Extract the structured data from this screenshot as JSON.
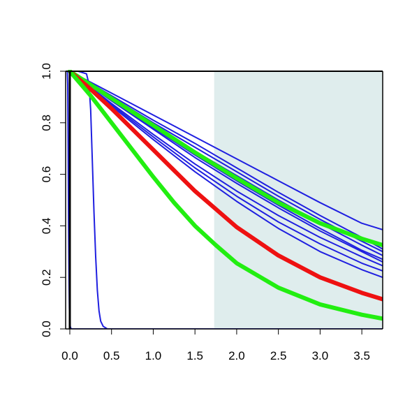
{
  "chart_data": {
    "type": "line",
    "title": "",
    "xlabel": "",
    "ylabel": "",
    "xlim": [
      -0.05,
      3.75
    ],
    "ylim": [
      0.0,
      1.0
    ],
    "x_ticks": [
      0.0,
      0.5,
      1.0,
      1.5,
      2.0,
      2.5,
      3.0,
      3.5
    ],
    "x_tick_labels": [
      "0.0",
      "0.5",
      "1.0",
      "1.5",
      "2.0",
      "2.5",
      "3.0",
      "3.5"
    ],
    "y_ticks": [
      0.0,
      0.2,
      0.4,
      0.6,
      0.8,
      1.0
    ],
    "y_tick_labels": [
      "0.0",
      "0.2",
      "0.4",
      "0.6",
      "0.8",
      "1.0"
    ],
    "grid": false,
    "legend": "none",
    "shaded_region": {
      "x_start": 1.73,
      "x_end": 3.75,
      "color": "#dfeded"
    },
    "series": [
      {
        "color": "#1f1fe0",
        "width": "thin",
        "x": [
          -0.03,
          -0.025,
          -0.02,
          -0.015,
          -0.01,
          -0.005,
          0.0,
          0.005,
          0.01,
          0.02,
          0.05,
          3.75
        ],
        "y": [
          1.0,
          0.95,
          0.7,
          0.4,
          0.2,
          0.08,
          0.03,
          0.01,
          0.004,
          0.0,
          0.0,
          0.0
        ]
      },
      {
        "color": "#1f1fe0",
        "width": "thin",
        "x": [
          -0.05,
          0.1,
          0.2,
          0.23,
          0.25,
          0.27,
          0.29,
          0.31,
          0.33,
          0.35,
          0.37,
          0.4,
          0.45,
          0.5,
          3.75
        ],
        "y": [
          1.0,
          1.0,
          0.99,
          0.95,
          0.85,
          0.65,
          0.45,
          0.28,
          0.15,
          0.07,
          0.03,
          0.01,
          0.0,
          0.0,
          0.0
        ]
      },
      {
        "color": "#1f1fe0",
        "width": "thin",
        "x": [
          0.0,
          0.5,
          1.0,
          1.5,
          2.0,
          2.5,
          3.0,
          3.5,
          3.75
        ],
        "y": [
          1.0,
          0.915,
          0.83,
          0.745,
          0.66,
          0.575,
          0.49,
          0.41,
          0.385
        ]
      },
      {
        "color": "#1f1fe0",
        "width": "thin",
        "x": [
          0.0,
          0.5,
          1.0,
          1.5,
          2.0,
          2.5,
          3.0,
          3.5,
          3.75
        ],
        "y": [
          1.0,
          0.905,
          0.81,
          0.72,
          0.625,
          0.53,
          0.44,
          0.355,
          0.31
        ]
      },
      {
        "color": "#1f1fe0",
        "width": "thin",
        "x": [
          0.0,
          0.5,
          1.0,
          1.5,
          2.0,
          2.5,
          3.0,
          3.5,
          3.75
        ],
        "y": [
          1.0,
          0.9,
          0.8,
          0.705,
          0.61,
          0.515,
          0.425,
          0.34,
          0.3
        ]
      },
      {
        "color": "#1f1fe0",
        "width": "thin",
        "x": [
          0.0,
          0.5,
          1.0,
          1.5,
          2.0,
          2.5,
          3.0,
          3.5,
          3.75
        ],
        "y": [
          1.0,
          0.895,
          0.79,
          0.69,
          0.595,
          0.5,
          0.41,
          0.325,
          0.285
        ]
      },
      {
        "color": "#1f1fe0",
        "width": "thin",
        "x": [
          0.0,
          0.5,
          1.0,
          1.5,
          2.0,
          2.5,
          3.0,
          3.5,
          3.75
        ],
        "y": [
          1.0,
          0.89,
          0.78,
          0.675,
          0.575,
          0.48,
          0.39,
          0.305,
          0.27
        ]
      },
      {
        "color": "#1f1fe0",
        "width": "thin",
        "x": [
          0.0,
          0.5,
          1.0,
          1.5,
          2.0,
          2.5,
          3.0,
          3.5,
          3.75
        ],
        "y": [
          1.0,
          0.885,
          0.775,
          0.665,
          0.565,
          0.47,
          0.38,
          0.3,
          0.26
        ]
      },
      {
        "color": "#1f1fe0",
        "width": "thin",
        "x": [
          0.0,
          0.5,
          1.0,
          1.5,
          2.0,
          2.5,
          3.0,
          3.5,
          3.75
        ],
        "y": [
          1.0,
          0.875,
          0.755,
          0.64,
          0.535,
          0.44,
          0.355,
          0.28,
          0.245
        ]
      },
      {
        "color": "#1f1fe0",
        "width": "thin",
        "x": [
          0.0,
          0.5,
          1.0,
          1.5,
          2.0,
          2.5,
          3.0,
          3.5,
          3.75
        ],
        "y": [
          1.0,
          0.87,
          0.745,
          0.625,
          0.515,
          0.415,
          0.33,
          0.255,
          0.225
        ]
      },
      {
        "color": "#1f1fe0",
        "width": "thin",
        "x": [
          0.0,
          0.5,
          1.0,
          1.5,
          2.0,
          2.5,
          3.0,
          3.5,
          3.75
        ],
        "y": [
          1.0,
          0.865,
          0.735,
          0.61,
          0.495,
          0.39,
          0.3,
          0.23,
          0.2
        ]
      },
      {
        "color": "#22ee11",
        "width": "thick",
        "x": [
          0.0,
          0.5,
          1.0,
          1.5,
          2.0,
          2.5,
          3.0,
          3.5,
          3.75
        ],
        "y": [
          1.0,
          0.895,
          0.79,
          0.685,
          0.585,
          0.49,
          0.41,
          0.35,
          0.325
        ]
      },
      {
        "color": "#ee1111",
        "width": "thick",
        "x": [
          0.0,
          0.25,
          0.5,
          0.75,
          1.0,
          1.25,
          1.5,
          1.75,
          2.0,
          2.5,
          3.0,
          3.5,
          3.75
        ],
        "y": [
          1.0,
          0.93,
          0.855,
          0.775,
          0.695,
          0.615,
          0.535,
          0.465,
          0.395,
          0.285,
          0.2,
          0.14,
          0.115
        ]
      },
      {
        "color": "#22ee11",
        "width": "thick",
        "x": [
          0.0,
          0.25,
          0.5,
          0.75,
          1.0,
          1.25,
          1.5,
          1.75,
          2.0,
          2.5,
          3.0,
          3.5,
          3.75
        ],
        "y": [
          1.0,
          0.905,
          0.8,
          0.695,
          0.59,
          0.49,
          0.4,
          0.325,
          0.255,
          0.16,
          0.095,
          0.055,
          0.04
        ]
      }
    ]
  }
}
